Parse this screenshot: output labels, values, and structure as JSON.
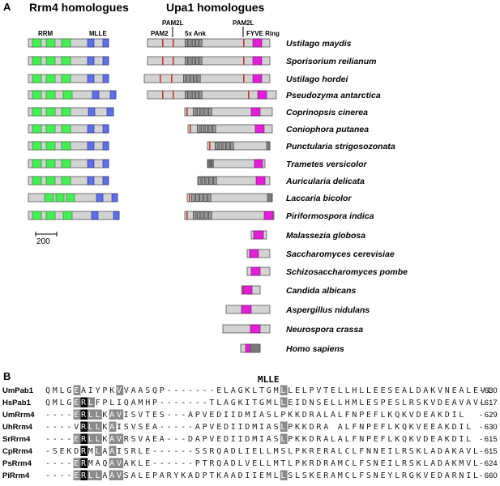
{
  "panel_a": {
    "letter": "A",
    "left_title": "Rrm4 homologues",
    "right_title": "Upa1 homologues",
    "rrm4_labels": {
      "rrm": "RRM",
      "mlle": "MLLE"
    },
    "upa1_labels": {
      "pam2": "PAM2",
      "pam2l_left": "PAM2L",
      "ank": "5x Ank",
      "pam2l_right": "PAM2L",
      "fyve": "FYVE Ring"
    },
    "scale_label": "200",
    "colors": {
      "body": "#d3d3d3",
      "rrm": "#44ee55",
      "mlle": "#5f6fe8",
      "fyve": "#e21fd6",
      "pam": "#c0392b",
      "ank": "#4a4a4a",
      "ring": "#7a7a7a"
    },
    "species": [
      "Ustilago maydis",
      "Sporisorium reilianum",
      "Ustilago hordei",
      "Pseudozyma antarctica",
      "Coprinopsis cinerea",
      "Coniophora putanea",
      "Punctularia strigosozonata",
      "Trametes versicolor",
      "Auricularia delicata",
      "Laccaria bicolor",
      "Piriformospora indica",
      "Malassezia globosa",
      "Saccharomyces cerevisiae",
      "Schizosaccharomyces pombe",
      "Candida albicans",
      "Aspergillus nidulans",
      "Neurospora crassa",
      "Homo sapiens"
    ]
  },
  "panel_b": {
    "letter": "B",
    "domain_title": "MLLE",
    "alignment": [
      {
        "name": "UmPab1",
        "seq": "QMLGEAIYPKVVAASQP-------ELAGKLTGMLLELPVTELLHLLEESEALDAKVNEALEVL",
        "end": "- 630"
      },
      {
        "name": "HsPab1",
        "seq": "QMLGERLFPLIQAMHP-------TLAGKITGMLLEIDNSELLHMLESPESLRSKVDEAVAVL",
        "end": "- 617"
      },
      {
        "name": "UmRrm4",
        "seq": "----ERLLKAVISVTES---APVEDIIDMIASLPKKDRALALFNPEFLKQKVDEAKDIL",
        "end": "- 629"
      },
      {
        "name": "UhRrm4",
        "seq": "----VRLLKAISVSEA-----APVEDIIDMIASLPKKDRA ALFNPEFLKQKVEEAKDIL",
        "end": "- 630"
      },
      {
        "name": "SrRrm4",
        "seq": "----ERLLKAVRSVAEA---DAPVEDIIDMIASLPKKDRALALFNPEFLKQKVDEAKDIL",
        "end": "- 615"
      },
      {
        "name": "CpRrm4",
        "seq": "-SEKDRMLAAISRLE------SSRQADLIELLMSLPKRERALCLFNNEILRSKLADAKAVL",
        "end": "- 615"
      },
      {
        "name": "PsRrm4",
        "seq": "----ERMAQAVAKLE------PTRQADLVELLMTLPKRDRAMCLFSNEILRSKLADAKMVL",
        "end": "- 624"
      },
      {
        "name": "PiRrm4",
        "seq": "----ERLLAAVSALEPARYKADPTKAADIIEMLLSLSKERAMCLFSNEYLRGKVEDARNIL",
        "end": "- 660"
      }
    ]
  }
}
